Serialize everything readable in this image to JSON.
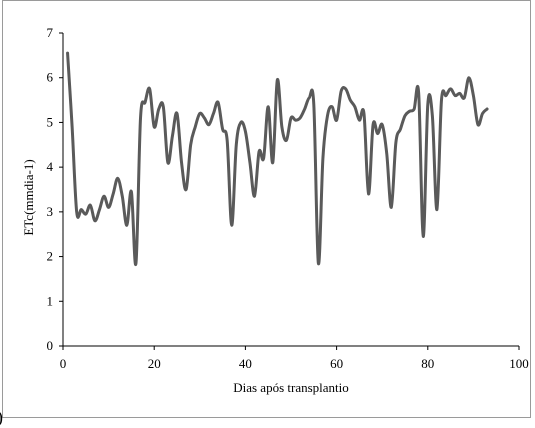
{
  "chart_data": {
    "type": "line",
    "title": "",
    "xlabel": "Dias após transplantio",
    "ylabel": "ETc(mmdia-1)",
    "xlim": [
      0,
      100
    ],
    "ylim": [
      0,
      7
    ],
    "xticks": [
      0,
      20,
      40,
      60,
      80,
      100
    ],
    "yticks": [
      0,
      1,
      2,
      3,
      4,
      5,
      6,
      7
    ],
    "grid": false,
    "legend": "none",
    "series_color": "#5a5a5a",
    "series": [
      {
        "x": [
          1,
          2,
          3,
          4,
          5,
          6,
          7,
          8,
          9,
          10,
          11,
          12,
          13,
          14,
          15,
          16,
          17,
          18,
          19,
          20,
          21,
          22,
          23,
          24,
          25,
          26,
          27,
          28,
          29,
          30,
          31,
          32,
          33,
          34,
          35,
          36,
          37,
          38,
          39,
          40,
          41,
          42,
          43,
          44,
          45,
          46,
          47,
          48,
          49,
          50,
          51,
          52,
          53,
          54,
          55,
          56,
          57,
          58,
          59,
          60,
          61,
          62,
          63,
          64,
          65,
          66,
          67,
          68,
          69,
          70,
          71,
          72,
          73,
          74,
          75,
          76,
          77,
          78,
          79,
          80,
          81,
          82,
          83,
          84,
          85,
          86,
          87,
          88,
          89,
          90,
          91,
          92,
          93
        ],
        "y": [
          6.55,
          4.9,
          3.0,
          3.05,
          2.95,
          3.15,
          2.8,
          3.05,
          3.35,
          3.1,
          3.4,
          3.75,
          3.35,
          2.7,
          3.45,
          1.85,
          5.1,
          5.45,
          5.75,
          4.9,
          5.3,
          5.35,
          4.1,
          4.7,
          5.2,
          4.1,
          3.5,
          4.5,
          4.9,
          5.2,
          5.1,
          4.95,
          5.2,
          5.45,
          4.85,
          4.6,
          2.7,
          4.5,
          5.0,
          4.8,
          4.1,
          3.35,
          4.35,
          4.2,
          5.35,
          4.1,
          5.95,
          4.9,
          4.6,
          5.1,
          5.05,
          5.1,
          5.3,
          5.55,
          5.4,
          1.85,
          4.2,
          5.15,
          5.35,
          5.05,
          5.7,
          5.75,
          5.5,
          5.35,
          5.05,
          5.2,
          3.4,
          4.95,
          4.75,
          4.95,
          4.3,
          3.1,
          4.55,
          4.85,
          5.15,
          5.25,
          5.3,
          5.65,
          2.45,
          5.4,
          5.15,
          3.05,
          5.5,
          5.6,
          5.75,
          5.6,
          5.65,
          5.55,
          6.0,
          5.6,
          4.95,
          5.2,
          5.3
        ]
      }
    ]
  },
  "corner_mark": ")"
}
